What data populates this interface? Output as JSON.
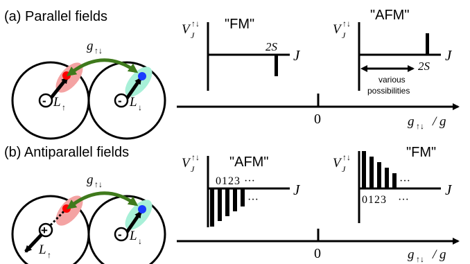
{
  "panels": [
    {
      "label": "(a) Parallel fields",
      "coupling_label": "g",
      "coupling_sub": "↑↓",
      "left_charge": "-",
      "left_moment": "L",
      "left_moment_sub": "↑",
      "right_charge": "-",
      "right_moment": "L",
      "right_moment_sub": "↓",
      "left_plot": {
        "title": "\"FM\"",
        "yaxis": "V",
        "yaxis_sub": "J",
        "yaxis_sup": "↑↓",
        "xaxis": "J",
        "tick": "2S"
      },
      "right_plot": {
        "title": "\"AFM\"",
        "yaxis": "V",
        "yaxis_sub": "J",
        "yaxis_sup": "↑↓",
        "xaxis": "J",
        "tick": "2S",
        "note_line1": "various",
        "note_line2": "possibilities"
      },
      "axis_zero": "0",
      "axis_label": "g",
      "axis_label_sub": "↑↓",
      "axis_label_tail": "/ g"
    },
    {
      "label": "(b) Antiparallel fields",
      "coupling_label": "g",
      "coupling_sub": "↑↓",
      "left_charge": "+",
      "left_moment": "L",
      "left_moment_sub": "↑",
      "right_charge": "-",
      "right_moment": "L",
      "right_moment_sub": "↓",
      "left_plot": {
        "title": "\"AFM\"",
        "yaxis": "V",
        "yaxis_sub": "J",
        "yaxis_sup": "↑↓",
        "xaxis": "J",
        "ticks": "0123",
        "dots": "···"
      },
      "right_plot": {
        "title": "\"FM\"",
        "yaxis": "V",
        "yaxis_sub": "J",
        "yaxis_sup": "↑↓",
        "xaxis": "J",
        "ticks": "0123",
        "dots": "···"
      },
      "axis_zero": "0",
      "axis_label": "g",
      "axis_label_sub": "↑↓",
      "axis_label_tail": "/ g"
    }
  ],
  "colors": {
    "arrow_green": "#3f7a1c",
    "red_dot": "#ff0000",
    "red_glow": "#f4a3a3",
    "blue_dot": "#1a3cff",
    "cyan_glow": "#a8f0d8"
  }
}
